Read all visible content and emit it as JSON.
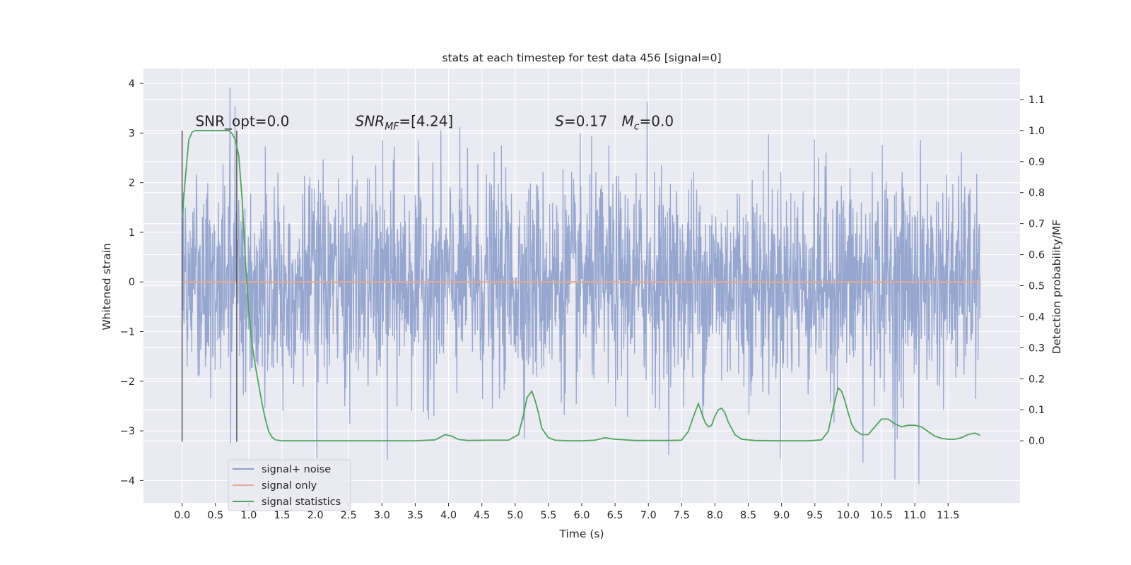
{
  "chart_data": {
    "type": "line",
    "title": "stats at each timestep for test data 456 [signal=0]",
    "xlabel": "Time (s)",
    "ylabel": "Whitened strain",
    "ylabel_right": "Detection probability/MF",
    "xlim": [
      -0.58,
      12.58
    ],
    "ylim": [
      -4.45,
      4.3
    ],
    "ylim_right": [
      -0.2,
      1.2
    ],
    "x_ticks": [
      0.0,
      0.5,
      1.0,
      1.5,
      2.0,
      2.5,
      3.0,
      3.5,
      4.0,
      4.5,
      5.0,
      5.5,
      6.0,
      6.5,
      7.0,
      7.5,
      8.0,
      8.5,
      9.0,
      9.5,
      10.0,
      10.5,
      11.0,
      11.5
    ],
    "x_tick_labels": [
      "0.0",
      "0.5",
      "1.0",
      "1.5",
      "2.0",
      "2.5",
      "3.0",
      "3.5",
      "4.0",
      "4.5",
      "5.0",
      "5.5",
      "6.0",
      "6.5",
      "7.0",
      "7.5",
      "8.0",
      "8.5",
      "9.0",
      "9.5",
      "10.0",
      "10.5",
      "11.0",
      "11.5"
    ],
    "y_ticks": [
      -4,
      -3,
      -2,
      -1,
      0,
      1,
      2,
      3,
      4
    ],
    "y_tick_labels": [
      "−4",
      "−3",
      "−2",
      "−1",
      "0",
      "1",
      "2",
      "3",
      "4"
    ],
    "y_right_ticks": [
      0.0,
      0.1,
      0.2,
      0.3,
      0.4,
      0.5,
      0.6,
      0.7,
      0.8,
      0.9,
      1.0,
      1.1
    ],
    "y_right_tick_labels": [
      "0.0",
      "0.1",
      "0.2",
      "0.3",
      "0.4",
      "0.5",
      "0.6",
      "0.7",
      "0.8",
      "0.9",
      "1.0",
      "1.1"
    ],
    "grid": true,
    "legend_position": "lower-left",
    "annotations": [
      {
        "id": "snr-opt",
        "parts": [
          {
            "text": "SNR_opt=0.0",
            "style": "normal"
          }
        ],
        "x": 0.2,
        "y_right": 1.015
      },
      {
        "id": "snr-mf",
        "parts": [
          {
            "text": "SNR",
            "style": "italic"
          },
          {
            "text": "MF",
            "style": "italic-sub"
          },
          {
            "text": "=[4.24]",
            "style": "normal"
          }
        ],
        "x": 2.6,
        "y_right": 1.015
      },
      {
        "id": "stat-s",
        "parts": [
          {
            "text": "S",
            "style": "italic"
          },
          {
            "text": "=0.17",
            "style": "normal"
          }
        ],
        "x": 5.6,
        "y_right": 1.015
      },
      {
        "id": "chirp-mass",
        "parts": [
          {
            "text": "M",
            "style": "italic"
          },
          {
            "text": "c",
            "style": "italic-sub"
          },
          {
            "text": "=0.0",
            "style": "normal"
          }
        ],
        "x": 6.6,
        "y_right": 1.015
      }
    ],
    "vertical_lines": [
      {
        "x": 0.0,
        "y_range": [
          -3.22,
          3.05
        ]
      },
      {
        "x": 0.82,
        "y_range": [
          -3.22,
          3.05
        ]
      }
    ],
    "series": [
      {
        "name": "signal+ noise",
        "axis": "left",
        "color": "#8da0cb",
        "description": "whitened strain time series, 12 s of Gaussian noise, approx. range -4.1 to 3.9",
        "x_range": [
          0.0,
          11.98
        ],
        "envelope": {
          "upper_typical": 1.2,
          "lower_typical": -1.2,
          "max": 3.92,
          "min": -4.07
        },
        "peaks": [
          {
            "x": 0.72,
            "y": 3.92
          },
          {
            "x": 6.98,
            "y": 3.63
          },
          {
            "x": 10.22,
            "y": 3.82
          },
          {
            "x": 10.22,
            "y": -3.64
          },
          {
            "x": 10.7,
            "y": -3.98
          },
          {
            "x": 11.06,
            "y": -4.07
          },
          {
            "x": 0.73,
            "y": -3.25
          },
          {
            "x": 2.02,
            "y": -3.55
          },
          {
            "x": 3.08,
            "y": -3.58
          }
        ]
      },
      {
        "name": "signal only",
        "axis": "left",
        "color": "#e9a88f",
        "x": [
          0.0,
          11.98
        ],
        "values": [
          0.0,
          0.0
        ]
      },
      {
        "name": "signal statistics",
        "axis": "right",
        "color": "#4ca55c",
        "x": [
          0.0,
          0.05,
          0.1,
          0.15,
          0.2,
          0.3,
          0.4,
          0.5,
          0.6,
          0.7,
          0.75,
          0.8,
          0.85,
          0.9,
          0.95,
          1.0,
          1.05,
          1.1,
          1.15,
          1.2,
          1.25,
          1.3,
          1.35,
          1.4,
          1.5,
          1.7,
          2.0,
          2.5,
          3.0,
          3.5,
          3.8,
          3.95,
          4.05,
          4.15,
          4.3,
          4.6,
          4.9,
          5.05,
          5.12,
          5.18,
          5.25,
          5.3,
          5.35,
          5.4,
          5.5,
          5.6,
          5.8,
          6.0,
          6.2,
          6.35,
          6.5,
          6.8,
          7.0,
          7.3,
          7.5,
          7.6,
          7.68,
          7.75,
          7.8,
          7.85,
          7.9,
          7.95,
          8.0,
          8.05,
          8.1,
          8.15,
          8.2,
          8.3,
          8.4,
          8.6,
          9.0,
          9.4,
          9.6,
          9.7,
          9.78,
          9.85,
          9.9,
          9.95,
          10.0,
          10.05,
          10.1,
          10.2,
          10.3,
          10.4,
          10.5,
          10.6,
          10.7,
          10.8,
          10.9,
          11.0,
          11.1,
          11.2,
          11.3,
          11.4,
          11.5,
          11.6,
          11.7,
          11.8,
          11.9,
          11.98
        ],
        "values": [
          0.72,
          0.85,
          0.97,
          0.995,
          1.0,
          1.0,
          1.0,
          1.0,
          1.0,
          1.0,
          0.99,
          0.97,
          0.92,
          0.78,
          0.58,
          0.42,
          0.31,
          0.24,
          0.18,
          0.12,
          0.07,
          0.03,
          0.012,
          0.003,
          0.0,
          0.0,
          0.0,
          0.0,
          0.0,
          0.0,
          0.003,
          0.02,
          0.015,
          0.004,
          0.001,
          0.002,
          0.002,
          0.02,
          0.08,
          0.14,
          0.16,
          0.13,
          0.09,
          0.04,
          0.01,
          0.002,
          0.0,
          0.0,
          0.002,
          0.01,
          0.005,
          0.001,
          0.001,
          0.001,
          0.002,
          0.03,
          0.08,
          0.12,
          0.09,
          0.06,
          0.045,
          0.05,
          0.08,
          0.1,
          0.105,
          0.09,
          0.06,
          0.02,
          0.005,
          0.001,
          0.0,
          0.0,
          0.003,
          0.03,
          0.11,
          0.17,
          0.16,
          0.13,
          0.09,
          0.055,
          0.035,
          0.02,
          0.02,
          0.045,
          0.07,
          0.07,
          0.055,
          0.045,
          0.05,
          0.05,
          0.045,
          0.03,
          0.015,
          0.008,
          0.005,
          0.005,
          0.01,
          0.02,
          0.025,
          0.018
        ]
      }
    ],
    "legend": [
      "signal+ noise",
      "signal only",
      "signal statistics"
    ]
  }
}
